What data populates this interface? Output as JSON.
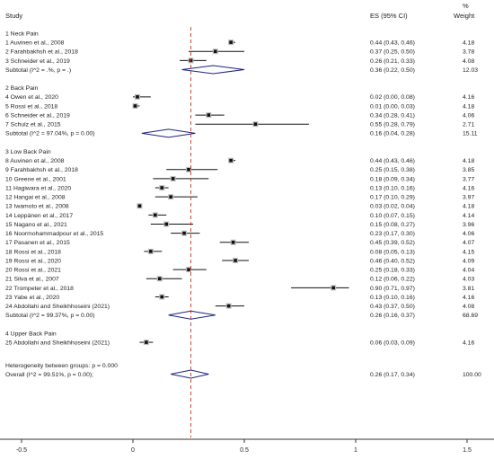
{
  "headers": {
    "study": "Study",
    "es": "ES (95% CI)",
    "pct": "%",
    "weight": "Weight"
  },
  "chart_data": {
    "type": "forest",
    "reference_line": 0.26,
    "x_axis": {
      "ticks": [
        -0.5,
        0,
        0.5,
        1,
        1.5
      ],
      "tick_labels": [
        "-0.5",
        "0",
        "0.5",
        "1",
        "1.5"
      ],
      "range": [
        -0.5,
        1.5
      ]
    },
    "groups": [
      {
        "name": "1 Neck Pain",
        "studies": [
          {
            "label": "1 Auvinen et al., 2008",
            "es": 0.44,
            "lo": 0.43,
            "hi": 0.46,
            "ci_text": "0.44 (0.43, 0.46)",
            "weight": "4.18"
          },
          {
            "label": "2 Farahbakhsh et al., 2018",
            "es": 0.37,
            "lo": 0.25,
            "hi": 0.5,
            "ci_text": "0.37 (0.25, 0.50)",
            "weight": "3.78"
          },
          {
            "label": "3 Schneider et al., 2019",
            "es": 0.26,
            "lo": 0.21,
            "hi": 0.33,
            "ci_text": "0.26 (0.21, 0.33)",
            "weight": "4.08"
          }
        ],
        "subtotal": {
          "label": "Subtotal  (I^2 = .%, p = .)",
          "es": 0.36,
          "lo": 0.22,
          "hi": 0.5,
          "ci_text": "0.36 (0.22, 0.50)",
          "weight": "12.03"
        }
      },
      {
        "name": "2 Back Pain",
        "studies": [
          {
            "label": "4 Owen et al., 2020",
            "es": 0.02,
            "lo": 0.0,
            "hi": 0.08,
            "ci_text": "0.02 (0.00, 0.08)",
            "weight": "4.16"
          },
          {
            "label": "5 Rossi et al., 2018",
            "es": 0.01,
            "lo": 0.0,
            "hi": 0.03,
            "ci_text": "0.01 (0.00, 0.03)",
            "weight": "4.18"
          },
          {
            "label": "6 Schneider et al., 2019",
            "es": 0.34,
            "lo": 0.28,
            "hi": 0.41,
            "ci_text": "0.34 (0.28, 0.41)",
            "weight": "4.06"
          },
          {
            "label": "7 Schulz et al., 2015",
            "es": 0.55,
            "lo": 0.28,
            "hi": 0.79,
            "ci_text": "0.55 (0.28, 0.79)",
            "weight": "2.71"
          }
        ],
        "subtotal": {
          "label": "Subtotal  (I^2 = 97.04%, p = 0.00)",
          "es": 0.16,
          "lo": 0.04,
          "hi": 0.28,
          "ci_text": "0.16 (0.04, 0.28)",
          "weight": "15.11"
        }
      },
      {
        "name": "3 Low Back Pain",
        "studies": [
          {
            "label": "8 Auvinen et al., 2008",
            "es": 0.44,
            "lo": 0.43,
            "hi": 0.46,
            "ci_text": "0.44 (0.43, 0.46)",
            "weight": "4.18"
          },
          {
            "label": "9 Farahbakhsh et al., 2018",
            "es": 0.25,
            "lo": 0.15,
            "hi": 0.38,
            "ci_text": "0.25 (0.15, 0.38)",
            "weight": "3.85"
          },
          {
            "label": "10 Greene et al., 2001",
            "es": 0.18,
            "lo": 0.09,
            "hi": 0.34,
            "ci_text": "0.18 (0.09, 0.34)",
            "weight": "3.77"
          },
          {
            "label": "11 Hagiwara et al., 2020",
            "es": 0.13,
            "lo": 0.1,
            "hi": 0.16,
            "ci_text": "0.13 (0.10, 0.16)",
            "weight": "4.16"
          },
          {
            "label": "12 Hangai et al., 2008",
            "es": 0.17,
            "lo": 0.1,
            "hi": 0.29,
            "ci_text": "0.17 (0.10, 0.29)",
            "weight": "3.97"
          },
          {
            "label": "13 Iwamoto et al., 2008",
            "es": 0.03,
            "lo": 0.02,
            "hi": 0.04,
            "ci_text": "0.03 (0.02, 0.04)",
            "weight": "4.18"
          },
          {
            "label": "14 Leppänen et al., 2017",
            "es": 0.1,
            "lo": 0.07,
            "hi": 0.15,
            "ci_text": "0.10 (0.07, 0.15)",
            "weight": "4.14"
          },
          {
            "label": "15 Nagano et al., 2021",
            "es": 0.15,
            "lo": 0.08,
            "hi": 0.27,
            "ci_text": "0.15 (0.08, 0.27)",
            "weight": "3.96"
          },
          {
            "label": "16 Noormohammadpour et al., 2015",
            "es": 0.23,
            "lo": 0.17,
            "hi": 0.3,
            "ci_text": "0.23 (0.17, 0.30)",
            "weight": "4.06"
          },
          {
            "label": "17 Pasanen et al., 2015",
            "es": 0.45,
            "lo": 0.39,
            "hi": 0.52,
            "ci_text": "0.45 (0.39, 0.52)",
            "weight": "4.07"
          },
          {
            "label": "18 Rossi et al., 2018",
            "es": 0.08,
            "lo": 0.05,
            "hi": 0.13,
            "ci_text": "0.08 (0.05, 0.13)",
            "weight": "4.15"
          },
          {
            "label": "19 Rossi et al., 2020",
            "es": 0.46,
            "lo": 0.4,
            "hi": 0.52,
            "ci_text": "0.46 (0.40, 0.52)",
            "weight": "4.09"
          },
          {
            "label": "20 Rossi et al., 2021",
            "es": 0.25,
            "lo": 0.18,
            "hi": 0.33,
            "ci_text": "0.25 (0.18, 0.33)",
            "weight": "4.04"
          },
          {
            "label": "21 Silva et al., 2007",
            "es": 0.12,
            "lo": 0.06,
            "hi": 0.22,
            "ci_text": "0.12 (0.06, 0.22)",
            "weight": "4.03"
          },
          {
            "label": "22 Trompeter et al., 2018",
            "es": 0.9,
            "lo": 0.71,
            "hi": 0.97,
            "ci_text": "0.90 (0.71, 0.97)",
            "weight": "3.81"
          },
          {
            "label": "23 Yabe et al., 2020",
            "es": 0.13,
            "lo": 0.1,
            "hi": 0.16,
            "ci_text": "0.13 (0.10, 0.16)",
            "weight": "4.16"
          },
          {
            "label": "24 Abdollahi and Sheikhhoseini (2021)",
            "es": 0.43,
            "lo": 0.37,
            "hi": 0.5,
            "ci_text": "0.43 (0.37, 0.50)",
            "weight": "4.08"
          }
        ],
        "subtotal": {
          "label": "Subtotal  (I^2 = 99.37%, p = 0.00)",
          "es": 0.26,
          "lo": 0.16,
          "hi": 0.37,
          "ci_text": "0.26 (0.16, 0.37)",
          "weight": "68.69"
        }
      },
      {
        "name": "4 Upper Back Pain",
        "studies": [
          {
            "label": "25 Abdollahi and Sheikhhoseini (2021)",
            "es": 0.06,
            "lo": 0.03,
            "hi": 0.09,
            "ci_text": "0.06 (0.03, 0.09)",
            "weight": "4.16"
          }
        ]
      }
    ],
    "heterogeneity_text": "Heterogeneity between groups: p = 0.000",
    "overall": {
      "label": "Overall  (I^2 = 99.51%, p = 0.00);",
      "es": 0.26,
      "lo": 0.17,
      "hi": 0.34,
      "ci_text": "0.26 (0.17, 0.34)",
      "weight": "100.00"
    }
  },
  "colors": {
    "diamond": "#1a237e",
    "reference_line": "#c0392b",
    "marker": "#111111",
    "text": "#222222"
  }
}
